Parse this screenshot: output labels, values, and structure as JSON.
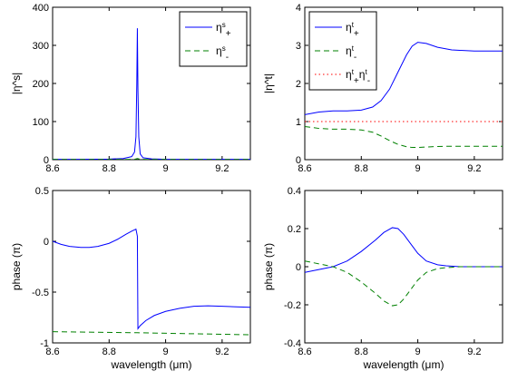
{
  "colors": {
    "blue": "#0000ff",
    "green": "#008000",
    "red": "#ff0000",
    "axes": "#000000",
    "background": "#ffffff"
  },
  "chart_data": [
    {
      "id": "tl",
      "type": "line",
      "xlabel": "",
      "ylabel": "|η^s|",
      "xlim": [
        8.6,
        9.3
      ],
      "ylim": [
        0,
        400
      ],
      "xticks": [
        8.6,
        8.8,
        9.0,
        9.2
      ],
      "xtick_labels": [
        "8.6",
        "8.8",
        "9",
        "9.2"
      ],
      "yticks": [
        0,
        100,
        200,
        300,
        400
      ],
      "ytick_labels": [
        "0",
        "100",
        "200",
        "300",
        "400"
      ],
      "legend_position": "top-right",
      "legend": [
        {
          "label": "η^s_+",
          "parts": [
            [
              "η",
              ""
            ],
            [
              "s",
              "sup"
            ],
            [
              "+",
              "sub"
            ]
          ],
          "color": "#0000ff",
          "dash": "solid"
        },
        {
          "label": "η^s_-",
          "parts": [
            [
              "η",
              ""
            ],
            [
              "s",
              "sup"
            ],
            [
              "-",
              "sub"
            ]
          ],
          "color": "#008000",
          "dash": "dashed"
        }
      ],
      "series": [
        {
          "color": "#0000ff",
          "dash": "solid",
          "x": [
            8.6,
            8.7,
            8.8,
            8.85,
            8.88,
            8.89,
            8.895,
            8.898,
            8.9,
            8.902,
            8.905,
            8.91,
            8.92,
            8.95,
            9.0,
            9.1,
            9.2,
            9.3
          ],
          "y": [
            1,
            1,
            1.5,
            3,
            8,
            20,
            60,
            200,
            345,
            185,
            60,
            15,
            5,
            2,
            1,
            1,
            1,
            1
          ]
        },
        {
          "color": "#008000",
          "dash": "dashed",
          "x": [
            8.6,
            8.85,
            8.89,
            8.9,
            8.91,
            8.95,
            9.3
          ],
          "y": [
            0.5,
            0.5,
            1,
            3,
            1,
            0.5,
            0.5
          ]
        }
      ]
    },
    {
      "id": "tr",
      "type": "line",
      "xlabel": "",
      "ylabel": "|η^t|",
      "xlim": [
        8.6,
        9.3
      ],
      "ylim": [
        0,
        4
      ],
      "xticks": [
        8.6,
        8.8,
        9.0,
        9.2
      ],
      "xtick_labels": [
        "8.6",
        "8.8",
        "9",
        "9.2"
      ],
      "yticks": [
        0,
        1,
        2,
        3,
        4
      ],
      "ytick_labels": [
        "0",
        "1",
        "2",
        "3",
        "4"
      ],
      "legend_position": "top-left",
      "legend": [
        {
          "label": "η^t_+",
          "parts": [
            [
              "η",
              ""
            ],
            [
              "t",
              "sup"
            ],
            [
              "+",
              "sub"
            ]
          ],
          "color": "#0000ff",
          "dash": "solid"
        },
        {
          "label": "η^t_-",
          "parts": [
            [
              "η",
              ""
            ],
            [
              "t",
              "sup"
            ],
            [
              "-",
              "sub"
            ]
          ],
          "color": "#008000",
          "dash": "dashed"
        },
        {
          "label": "η^t_+η^t_-",
          "parts": [
            [
              "η",
              ""
            ],
            [
              "t",
              "sup"
            ],
            [
              "+",
              "sub"
            ],
            [
              "η",
              ""
            ],
            [
              "t",
              "sup"
            ],
            [
              "-",
              "sub"
            ]
          ],
          "color": "#ff0000",
          "dash": "dotted"
        }
      ],
      "series": [
        {
          "color": "#0000ff",
          "dash": "solid",
          "x": [
            8.6,
            8.65,
            8.7,
            8.75,
            8.8,
            8.84,
            8.87,
            8.9,
            8.93,
            8.96,
            8.98,
            9.0,
            9.03,
            9.07,
            9.12,
            9.2,
            9.3
          ],
          "y": [
            1.18,
            1.25,
            1.28,
            1.28,
            1.3,
            1.38,
            1.55,
            1.85,
            2.3,
            2.75,
            2.98,
            3.08,
            3.05,
            2.95,
            2.88,
            2.85,
            2.85
          ]
        },
        {
          "color": "#008000",
          "dash": "dashed",
          "x": [
            8.6,
            8.65,
            8.7,
            8.75,
            8.8,
            8.84,
            8.87,
            8.9,
            8.93,
            8.96,
            8.98,
            9.0,
            9.05,
            9.1,
            9.2,
            9.3
          ],
          "y": [
            0.87,
            0.82,
            0.8,
            0.8,
            0.78,
            0.72,
            0.62,
            0.5,
            0.4,
            0.34,
            0.32,
            0.32,
            0.34,
            0.35,
            0.35,
            0.35
          ]
        },
        {
          "color": "#ff0000",
          "dash": "dotted",
          "x": [
            8.6,
            9.3
          ],
          "y": [
            1,
            1
          ]
        }
      ]
    },
    {
      "id": "bl",
      "type": "line",
      "xlabel": "wavelength (μm)",
      "ylabel": "phase (π)",
      "xlim": [
        8.6,
        9.3
      ],
      "ylim": [
        -1,
        0.5
      ],
      "xticks": [
        8.6,
        8.8,
        9.0,
        9.2
      ],
      "xtick_labels": [
        "8.6",
        "8.8",
        "9",
        "9.2"
      ],
      "yticks": [
        -1,
        -0.5,
        0,
        0.5
      ],
      "ytick_labels": [
        "-1",
        "-0.5",
        "0",
        "0.5"
      ],
      "legend": [],
      "series": [
        {
          "color": "#0000ff",
          "dash": "solid",
          "x": [
            8.6,
            8.63,
            8.66,
            8.7,
            8.73,
            8.76,
            8.8,
            8.83,
            8.86,
            8.88,
            8.895,
            8.9,
            8.902,
            8.91,
            8.93,
            8.96,
            9.0,
            9.05,
            9.1,
            9.15,
            9.2,
            9.25,
            9.3
          ],
          "y": [
            0.0,
            -0.03,
            -0.05,
            -0.06,
            -0.06,
            -0.05,
            -0.02,
            0.02,
            0.07,
            0.1,
            0.12,
            0.05,
            -0.86,
            -0.83,
            -0.78,
            -0.73,
            -0.69,
            -0.66,
            -0.64,
            -0.635,
            -0.64,
            -0.645,
            -0.65
          ]
        },
        {
          "color": "#008000",
          "dash": "dashed",
          "x": [
            8.6,
            8.9,
            9.3
          ],
          "y": [
            -0.89,
            -0.9,
            -0.92
          ]
        }
      ]
    },
    {
      "id": "br",
      "type": "line",
      "xlabel": "wavelength (μm)",
      "ylabel": "phase (π)",
      "xlim": [
        8.6,
        9.3
      ],
      "ylim": [
        -0.4,
        0.4
      ],
      "xticks": [
        8.6,
        8.8,
        9.0,
        9.2
      ],
      "xtick_labels": [
        "8.6",
        "8.8",
        "9",
        "9.2"
      ],
      "yticks": [
        -0.4,
        -0.2,
        0,
        0.2,
        0.4
      ],
      "ytick_labels": [
        "-0.4",
        "-0.2",
        "0",
        "0.2",
        "0.4"
      ],
      "legend": [],
      "series": [
        {
          "color": "#0000ff",
          "dash": "solid",
          "x": [
            8.6,
            8.65,
            8.7,
            8.75,
            8.8,
            8.85,
            8.88,
            8.91,
            8.93,
            8.95,
            8.98,
            9.0,
            9.03,
            9.07,
            9.1,
            9.15,
            9.2,
            9.3
          ],
          "y": [
            -0.03,
            -0.015,
            0.0,
            0.03,
            0.08,
            0.14,
            0.18,
            0.205,
            0.2,
            0.17,
            0.11,
            0.07,
            0.03,
            0.01,
            0.005,
            0.0,
            0.0,
            0.0
          ]
        },
        {
          "color": "#008000",
          "dash": "dashed",
          "x": [
            8.6,
            8.65,
            8.7,
            8.75,
            8.8,
            8.85,
            8.88,
            8.91,
            8.93,
            8.95,
            8.98,
            9.0,
            9.03,
            9.07,
            9.1,
            9.15,
            9.2,
            9.3
          ],
          "y": [
            0.03,
            0.015,
            0.0,
            -0.03,
            -0.08,
            -0.14,
            -0.18,
            -0.205,
            -0.2,
            -0.17,
            -0.11,
            -0.07,
            -0.03,
            -0.01,
            -0.005,
            0.0,
            0.0,
            0.0
          ]
        }
      ]
    }
  ]
}
